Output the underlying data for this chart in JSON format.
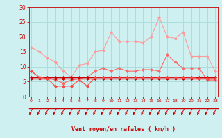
{
  "xlabel": "Vent moyen/en rafales ( km/h )",
  "x": [
    0,
    1,
    2,
    3,
    4,
    5,
    6,
    7,
    8,
    9,
    10,
    11,
    12,
    13,
    14,
    15,
    16,
    17,
    18,
    19,
    20,
    21,
    22,
    23
  ],
  "line1": [
    16.5,
    15.0,
    13.0,
    11.5,
    8.5,
    6.5,
    10.5,
    11.0,
    15.0,
    15.5,
    21.5,
    18.5,
    18.5,
    18.5,
    18.0,
    20.0,
    26.5,
    20.0,
    19.5,
    21.5,
    13.5,
    13.5,
    13.5,
    8.5
  ],
  "line2": [
    8.5,
    6.5,
    6.5,
    5.5,
    4.5,
    5.5,
    6.0,
    6.5,
    8.5,
    9.5,
    8.5,
    9.5,
    8.5,
    8.5,
    9.0,
    9.0,
    8.5,
    14.0,
    11.5,
    9.5,
    9.5,
    9.5,
    5.5,
    5.5
  ],
  "line3_flat": [
    6.5,
    6.5,
    6.5,
    6.5,
    6.5,
    6.5,
    6.5,
    6.5,
    6.5,
    6.5,
    6.5,
    6.5,
    6.5,
    6.5,
    6.5,
    6.5,
    6.5,
    6.5,
    6.5,
    6.5,
    6.5,
    6.5,
    6.5,
    6.5
  ],
  "line4_flat": [
    6.0,
    6.0,
    6.0,
    6.0,
    6.0,
    6.0,
    6.0,
    6.0,
    6.0,
    6.0,
    6.0,
    6.0,
    6.0,
    6.0,
    6.0,
    6.0,
    6.0,
    6.0,
    6.0,
    6.0,
    6.0,
    6.0,
    6.0,
    6.0
  ],
  "line5": [
    8.5,
    6.5,
    6.0,
    3.5,
    3.5,
    3.5,
    5.5,
    3.5,
    6.5,
    6.5,
    6.5,
    6.5,
    6.5,
    6.5,
    6.5,
    6.5,
    6.5,
    6.5,
    6.5,
    6.5,
    6.5,
    6.0,
    6.0,
    6.0
  ],
  "bg_color": "#cff0f0",
  "grid_color": "#aadddd",
  "line1_color": "#ff9999",
  "line2_color": "#ff6666",
  "line3_color": "#cc0000",
  "line4_color": "#cc0000",
  "line5_color": "#ff4444",
  "arrow_color": "#cc0000",
  "red_line_color": "#cc0000",
  "ylim": [
    0,
    30
  ],
  "yticks": [
    0,
    5,
    10,
    15,
    20,
    25,
    30
  ],
  "xlim": [
    -0.3,
    23.3
  ],
  "xlabel_color": "#cc0000",
  "tick_color": "#cc0000",
  "markersize": 2.5
}
